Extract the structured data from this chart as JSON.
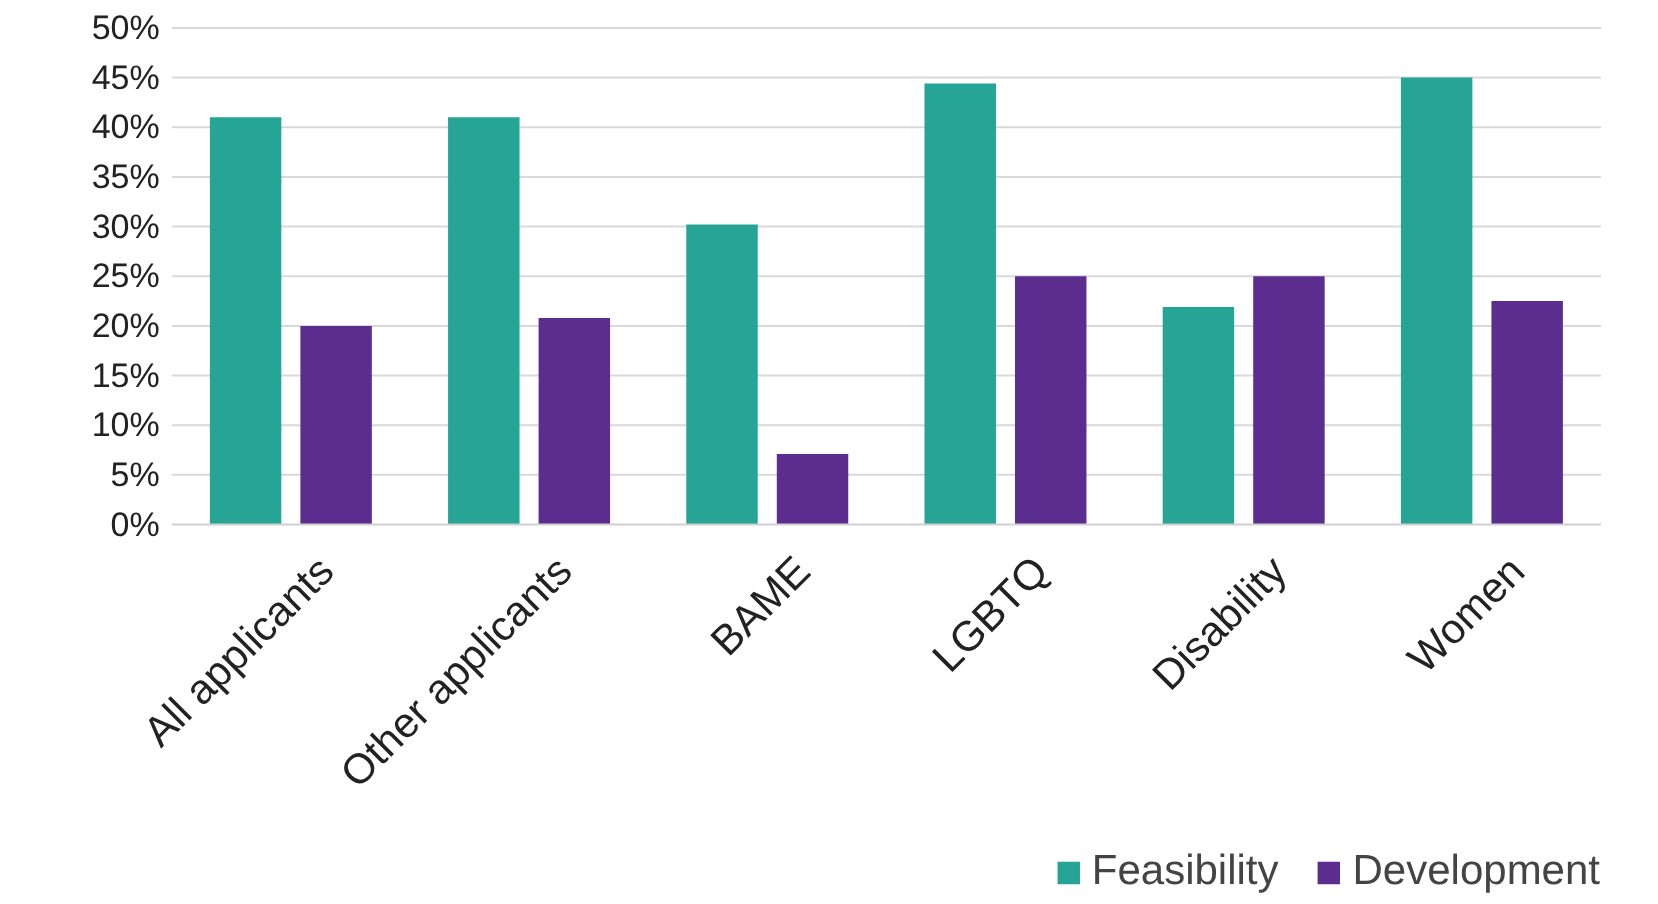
{
  "chart_data": {
    "type": "bar",
    "categories": [
      "All applicants",
      "Other applicants",
      "BAME",
      "LGBTQ",
      "Disability",
      "Women"
    ],
    "series": [
      {
        "name": "Feasibility",
        "color": "#26a496",
        "values": [
          41,
          41,
          30.2,
          44.4,
          21.9,
          45
        ]
      },
      {
        "name": "Development",
        "color": "#5b2d8e",
        "values": [
          20,
          20.8,
          7.1,
          25,
          25,
          22.5
        ]
      }
    ],
    "ylim": [
      0,
      50
    ],
    "yticks": [
      {
        "value": 0,
        "label": "0%"
      },
      {
        "value": 5,
        "label": "5%"
      },
      {
        "value": 10,
        "label": "10%"
      },
      {
        "value": 15,
        "label": "15%"
      },
      {
        "value": 20,
        "label": "20%"
      },
      {
        "value": 25,
        "label": "25%"
      },
      {
        "value": 30,
        "label": "30%"
      },
      {
        "value": 35,
        "label": "35%"
      },
      {
        "value": 40,
        "label": "40%"
      },
      {
        "value": 45,
        "label": "45%"
      },
      {
        "value": 50,
        "label": "50%"
      }
    ],
    "grid": "y",
    "legend": "bottom right"
  }
}
